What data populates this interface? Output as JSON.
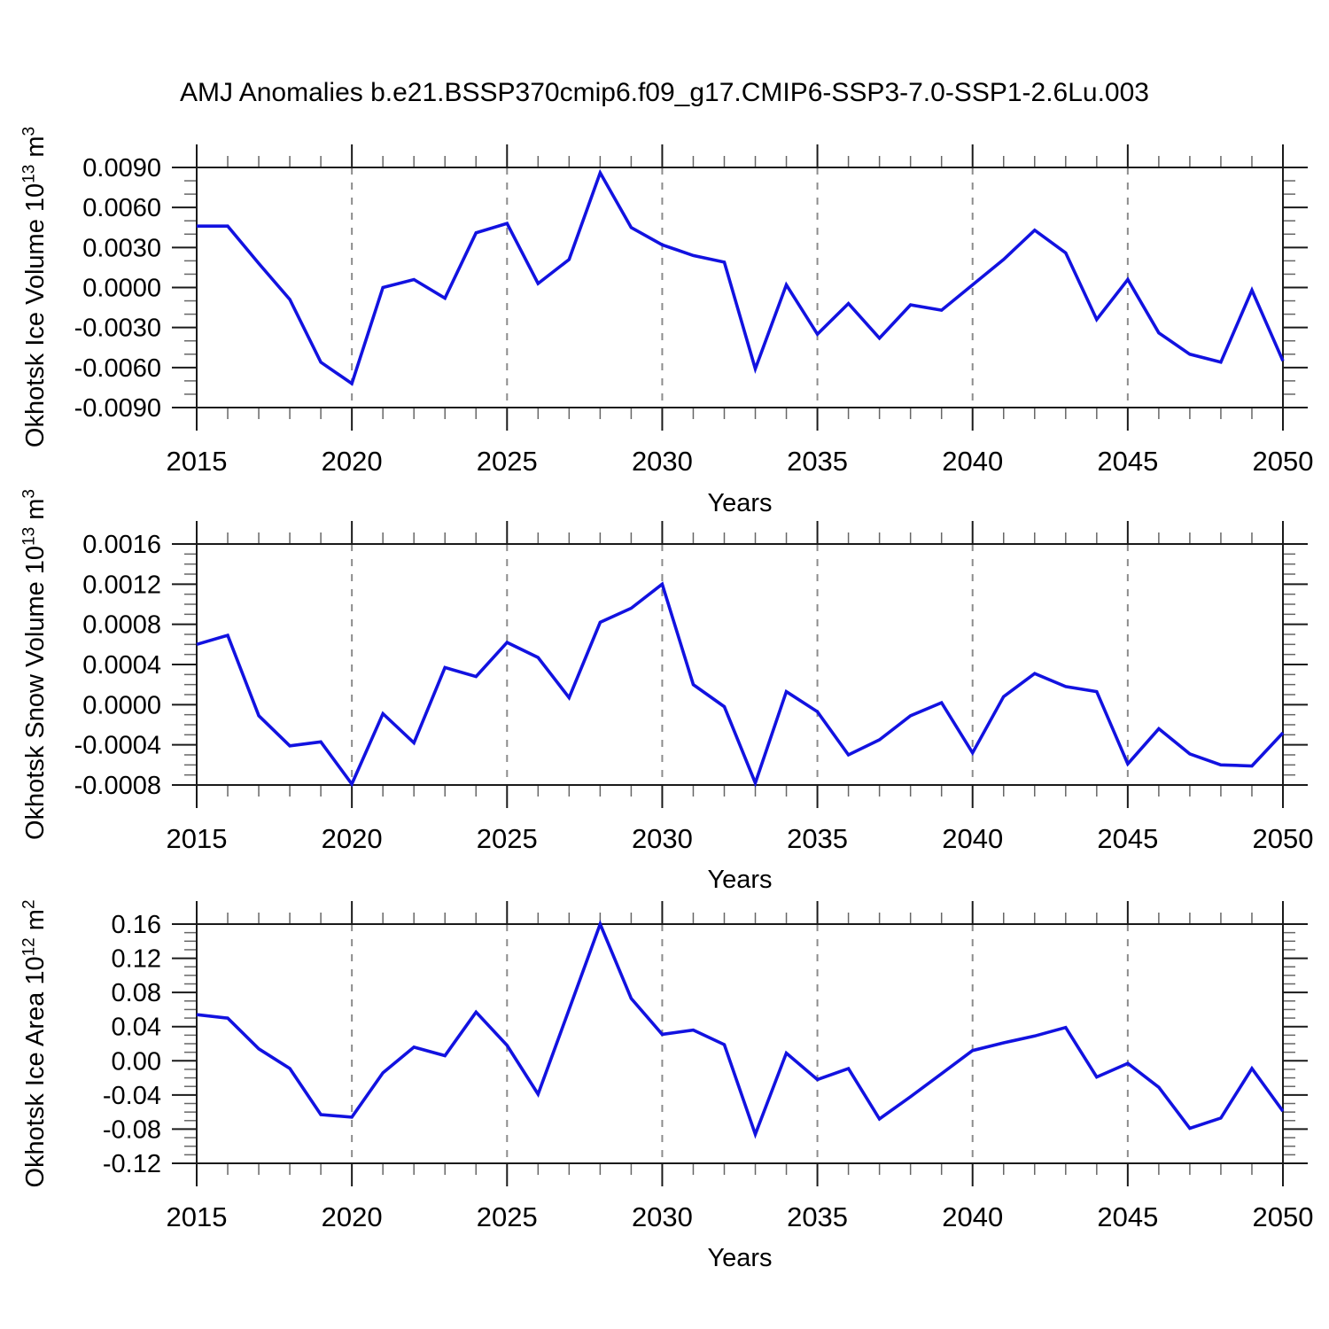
{
  "title": "AMJ Anomalies b.e21.BSSP370cmip6.f09_g17.CMIP6-SSP3-7.0-SSP1-2.6Lu.003",
  "colors": {
    "line": "#1212e0",
    "axis": "#1a1a1a",
    "minor_tick": "#666666",
    "grid": "#8c8c8c",
    "text": "#000000",
    "background": "#ffffff"
  },
  "years": [
    2015,
    2016,
    2017,
    2018,
    2019,
    2020,
    2021,
    2022,
    2023,
    2024,
    2025,
    2026,
    2027,
    2028,
    2029,
    2030,
    2031,
    2032,
    2033,
    2034,
    2035,
    2036,
    2037,
    2038,
    2039,
    2040,
    2041,
    2042,
    2043,
    2044,
    2045,
    2046,
    2047,
    2048,
    2049,
    2050
  ],
  "x_axis": {
    "label": "Years",
    "tick_labels": [
      "2015",
      "2020",
      "2025",
      "2030",
      "2035",
      "2040",
      "2045",
      "2050"
    ],
    "tick_values": [
      2015,
      2020,
      2025,
      2030,
      2035,
      2040,
      2045,
      2050
    ],
    "grid_values": [
      2020,
      2025,
      2030,
      2035,
      2040,
      2045
    ],
    "xlim": [
      2015,
      2050
    ]
  },
  "chart_data": [
    {
      "type": "line",
      "name": "okhotsk-ice-volume",
      "ylabel_parts": [
        "Okhotsk Ice Volume 10",
        "13",
        " m",
        "3"
      ],
      "ylim": [
        -0.009,
        0.009
      ],
      "ytick_labels": [
        "0.0090",
        "0.0060",
        "0.0030",
        "0.0000",
        "-0.0030",
        "-0.0060",
        "-0.0090"
      ],
      "ytick_values": [
        0.009,
        0.006,
        0.003,
        0,
        -0.003,
        -0.006,
        -0.009
      ],
      "minor_step": 0.001,
      "grid": "vertical-dashed",
      "values": [
        0.0046,
        0.0046,
        0.0018,
        -0.0009,
        -0.0056,
        -0.0072,
        0.0,
        0.0006,
        -0.0008,
        0.0041,
        0.0048,
        0.0003,
        0.0021,
        0.0086,
        0.0045,
        0.0032,
        0.0024,
        0.0019,
        -0.0061,
        0.0002,
        -0.0035,
        -0.0012,
        -0.0038,
        -0.0013,
        -0.0017,
        0.0002,
        0.0021,
        0.0043,
        0.0026,
        -0.0024,
        0.0006,
        -0.0034,
        -0.005,
        -0.0056,
        -0.0002,
        -0.0055
      ]
    },
    {
      "type": "line",
      "name": "okhotsk-snow-volume",
      "ylabel_parts": [
        "Okhotsk Snow Volume 10",
        "13",
        " m",
        "3"
      ],
      "ylim": [
        -0.0008,
        0.0016
      ],
      "ytick_labels": [
        "0.0016",
        "0.0012",
        "0.0008",
        "0.0004",
        "0.0000",
        "-0.0004",
        "-0.0008"
      ],
      "ytick_values": [
        0.0016,
        0.0012,
        0.0008,
        0.0004,
        0,
        -0.0004,
        -0.0008
      ],
      "minor_step": 0.0001,
      "grid": "vertical-dashed",
      "values": [
        0.0006,
        0.00069,
        -0.00011,
        -0.00041,
        -0.00037,
        -0.00079,
        -9e-05,
        -0.00038,
        0.00037,
        0.00028,
        0.00062,
        0.00047,
        7e-05,
        0.00082,
        0.00096,
        0.0012,
        0.0002,
        -2e-05,
        -0.00078,
        0.00013,
        -7e-05,
        -0.0005,
        -0.00035,
        -0.00011,
        2e-05,
        -0.00048,
        8e-05,
        0.00031,
        0.00018,
        0.00013,
        -0.00059,
        -0.00024,
        -0.00049,
        -0.0006,
        -0.00061,
        -0.00028
      ]
    },
    {
      "type": "line",
      "name": "okhotsk-ice-area",
      "ylabel_parts": [
        "Okhotsk Ice Area 10",
        "12",
        " m",
        "2"
      ],
      "ylim": [
        -0.12,
        0.16
      ],
      "ytick_labels": [
        "0.16",
        "0.12",
        "0.08",
        "0.04",
        "0.00",
        "-0.04",
        "-0.08",
        "-0.12"
      ],
      "ytick_values": [
        0.16,
        0.12,
        0.08,
        0.04,
        0,
        -0.04,
        -0.08,
        -0.12
      ],
      "minor_step": 0.01,
      "grid": "vertical-dashed",
      "values": [
        0.054,
        0.05,
        0.014,
        -0.009,
        -0.063,
        -0.066,
        -0.014,
        0.016,
        0.006,
        0.057,
        0.018,
        -0.039,
        0.06,
        0.16,
        0.073,
        0.031,
        0.036,
        0.019,
        -0.086,
        0.009,
        -0.022,
        -0.009,
        -0.068,
        -0.042,
        -0.015,
        0.012,
        0.021,
        0.029,
        0.039,
        -0.019,
        -0.003,
        -0.031,
        -0.079,
        -0.067,
        -0.009,
        -0.059
      ]
    }
  ]
}
